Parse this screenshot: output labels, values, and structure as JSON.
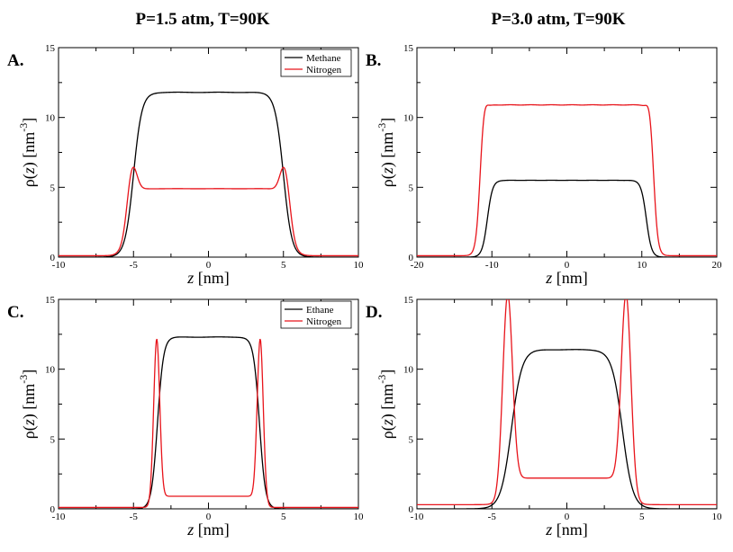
{
  "titles": {
    "left": "P=1.5 atm, T=90K",
    "right": "P=3.0 atm, T=90K"
  },
  "labels": {
    "y_prefix": "ρ(",
    "y_var": "z",
    "y_mid": ") [nm",
    "y_sup": "-3",
    "y_suffix": "]",
    "x_var": "z",
    "x_suffix": " [nm]"
  },
  "colors": {
    "series1": "#000000",
    "series2": "#e8141b"
  },
  "chart_data": [
    {
      "type": "line",
      "panel": "A.",
      "xlim": [
        -10,
        10
      ],
      "ylim": [
        0,
        15
      ],
      "xticks": [
        -10,
        -5,
        0,
        5,
        10
      ],
      "yticks": [
        0,
        5,
        10,
        15
      ],
      "xlabel": "z [nm]",
      "ylabel": "ρ(z) [nm-3]",
      "legend": "top-right",
      "series": [
        {
          "name": "Methane",
          "color": "#000000",
          "kind": "plateau",
          "center": 0,
          "half_width": 5.0,
          "width": 0.28,
          "bulk": 11.8,
          "gas": 0.0,
          "peak": 0,
          "peak_offset": 0,
          "peak_width": 0.3
        },
        {
          "name": "Nitrogen",
          "color": "#e8141b",
          "kind": "plateau",
          "center": 0,
          "half_width": 5.45,
          "width": 0.22,
          "bulk": 4.9,
          "gas": 0.1,
          "peak": 2.2,
          "peak_offset": -0.35,
          "peak_width": 0.3
        }
      ]
    },
    {
      "type": "line",
      "panel": "B.",
      "xlim": [
        -20,
        20
      ],
      "ylim": [
        0,
        15
      ],
      "xticks": [
        -20,
        -10,
        0,
        10,
        20
      ],
      "yticks": [
        0,
        5,
        10,
        15
      ],
      "xlabel": "z [nm]",
      "ylabel": "ρ(z) [nm-3]",
      "legend": "none",
      "series": [
        {
          "name": "Methane",
          "color": "#000000",
          "kind": "plateau",
          "center": 0,
          "half_width": 10.6,
          "width": 0.35,
          "bulk": 5.5,
          "gas": 0.0,
          "peak": 0,
          "peak_offset": 0,
          "peak_width": 0.3
        },
        {
          "name": "Nitrogen",
          "color": "#e8141b",
          "kind": "plateau",
          "center": 0,
          "half_width": 11.6,
          "width": 0.28,
          "bulk": 10.9,
          "gas": 0.1,
          "peak": 0.5,
          "peak_offset": -0.6,
          "peak_width": 0.35
        }
      ]
    },
    {
      "type": "line",
      "panel": "C.",
      "xlim": [
        -10,
        10
      ],
      "ylim": [
        0,
        15
      ],
      "xticks": [
        -10,
        -5,
        0,
        5,
        10
      ],
      "yticks": [
        0,
        5,
        10,
        15
      ],
      "xlabel": "z [nm]",
      "ylabel": "ρ(z) [nm-3]",
      "legend": "top-right",
      "series": [
        {
          "name": "Ethane",
          "color": "#000000",
          "kind": "plateau",
          "center": 0,
          "half_width": 3.4,
          "width": 0.2,
          "bulk": 12.3,
          "gas": 0.0,
          "peak": 0,
          "peak_offset": 0,
          "peak_width": 0.3
        },
        {
          "name": "Nitrogen",
          "color": "#e8141b",
          "kind": "well",
          "center": 0,
          "half_width": 3.0,
          "width": 0.18,
          "bulk": 0.9,
          "gas": 0.1,
          "peak": 11.3,
          "peak_at": 3.45,
          "peak_width": 0.2,
          "tail": 0.35
        }
      ]
    },
    {
      "type": "line",
      "panel": "D.",
      "xlim": [
        -10,
        10
      ],
      "ylim": [
        0,
        15
      ],
      "xticks": [
        -10,
        -5,
        0,
        5,
        10
      ],
      "yticks": [
        0,
        5,
        10,
        15
      ],
      "xlabel": "z [nm]",
      "ylabel": "ρ(z) [nm-3]",
      "legend": "none",
      "series": [
        {
          "name": "Ethane",
          "color": "#000000",
          "kind": "plateau",
          "center": 0,
          "half_width": 3.7,
          "width": 0.35,
          "bulk": 11.4,
          "gas": 0.0,
          "peak": 0,
          "peak_offset": 0,
          "peak_width": 0.3
        },
        {
          "name": "Nitrogen",
          "color": "#e8141b",
          "kind": "well",
          "center": 0,
          "half_width": 3.0,
          "width": 0.35,
          "bulk": 2.2,
          "gas": 0.3,
          "peak": 13.4,
          "peak_at": 3.95,
          "peak_width": 0.32,
          "tail": 0.42
        }
      ]
    }
  ]
}
